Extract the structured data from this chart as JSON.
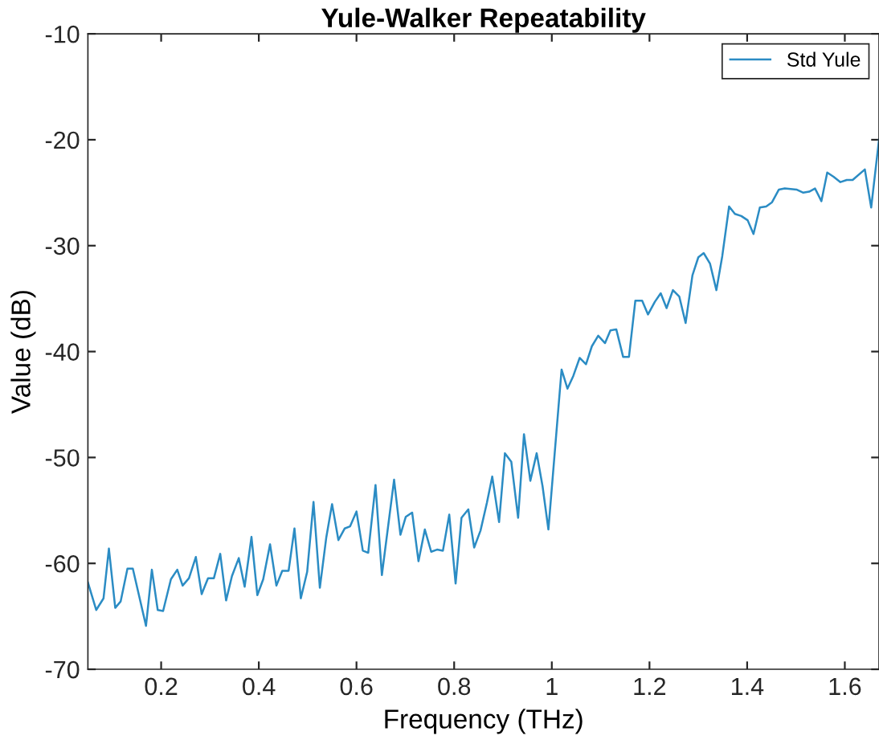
{
  "chart_data": {
    "type": "line",
    "title": "Yule-Walker Repeatability",
    "xlabel": "Frequency (THz)",
    "ylabel": "Value (dB)",
    "x": [
      0.05,
      0.067,
      0.082,
      0.093,
      0.106,
      0.117,
      0.131,
      0.142,
      0.169,
      0.181,
      0.193,
      0.204,
      0.22,
      0.233,
      0.244,
      0.257,
      0.271,
      0.283,
      0.296,
      0.308,
      0.321,
      0.333,
      0.345,
      0.359,
      0.371,
      0.385,
      0.397,
      0.409,
      0.423,
      0.436,
      0.448,
      0.461,
      0.473,
      0.486,
      0.499,
      0.512,
      0.525,
      0.538,
      0.55,
      0.563,
      0.576,
      0.587,
      0.6,
      0.613,
      0.624,
      0.639,
      0.652,
      0.677,
      0.69,
      0.701,
      0.714,
      0.727,
      0.74,
      0.753,
      0.765,
      0.777,
      0.79,
      0.803,
      0.815,
      0.829,
      0.841,
      0.854,
      0.867,
      0.878,
      0.892,
      0.904,
      0.917,
      0.931,
      0.943,
      0.956,
      0.969,
      0.981,
      0.993,
      1.02,
      1.032,
      1.044,
      1.057,
      1.07,
      1.082,
      1.095,
      1.109,
      1.12,
      1.132,
      1.146,
      1.158,
      1.171,
      1.185,
      1.197,
      1.211,
      1.223,
      1.235,
      1.248,
      1.261,
      1.274,
      1.288,
      1.3,
      1.311,
      1.324,
      1.337,
      1.349,
      1.363,
      1.375,
      1.388,
      1.401,
      1.413,
      1.426,
      1.439,
      1.451,
      1.465,
      1.477,
      1.501,
      1.515,
      1.527,
      1.539,
      1.552,
      1.564,
      1.577,
      1.591,
      1.604,
      1.616,
      1.641,
      1.654,
      1.67
    ],
    "series": [
      {
        "name": "Std Yule",
        "color": "#2b8cc4",
        "values": [
          -61.8,
          -64.4,
          -63.3,
          -58.6,
          -64.2,
          -63.6,
          -60.5,
          -60.5,
          -65.9,
          -60.6,
          -64.4,
          -64.5,
          -61.5,
          -60.6,
          -62.1,
          -61.4,
          -59.4,
          -62.9,
          -61.4,
          -61.4,
          -59.1,
          -63.5,
          -61.2,
          -59.5,
          -62.2,
          -57.5,
          -63.0,
          -61.5,
          -58.2,
          -62.1,
          -60.7,
          -60.7,
          -56.7,
          -63.3,
          -60.8,
          -54.2,
          -62.3,
          -57.6,
          -54.4,
          -57.8,
          -56.7,
          -56.5,
          -55.1,
          -58.8,
          -59.0,
          -52.6,
          -61.1,
          -52.1,
          -57.3,
          -55.6,
          -55.2,
          -59.8,
          -56.8,
          -58.9,
          -58.7,
          -58.8,
          -55.4,
          -61.9,
          -55.7,
          -54.9,
          -58.5,
          -56.9,
          -54.3,
          -51.8,
          -56.1,
          -49.6,
          -50.4,
          -55.7,
          -47.8,
          -52.2,
          -49.6,
          -52.7,
          -56.8,
          -41.7,
          -43.5,
          -42.3,
          -40.6,
          -41.2,
          -39.5,
          -38.5,
          -39.2,
          -38.0,
          -37.9,
          -40.5,
          -40.5,
          -35.2,
          -35.2,
          -36.5,
          -35.3,
          -34.5,
          -35.9,
          -34.2,
          -34.8,
          -37.3,
          -32.8,
          -31.1,
          -30.7,
          -31.7,
          -34.2,
          -31.0,
          -26.3,
          -27.0,
          -27.2,
          -27.6,
          -28.9,
          -26.4,
          -26.3,
          -25.9,
          -24.7,
          -24.6,
          -24.7,
          -25.0,
          -24.9,
          -24.6,
          -25.8,
          -23.1,
          -23.5,
          -24.0,
          -23.8,
          -23.8,
          -22.8,
          -26.4,
          -20.0
        ]
      }
    ],
    "xlim": [
      0.05,
      1.67
    ],
    "ylim": [
      -70,
      -10
    ],
    "xticks": [
      0.2,
      0.4,
      0.6,
      0.8,
      1,
      1.2,
      1.4,
      1.6
    ],
    "yticks": [
      -70,
      -60,
      -50,
      -40,
      -30,
      -20,
      -10
    ],
    "legend": "top right",
    "grid": false,
    "line_style": "solid",
    "marker": "none"
  }
}
